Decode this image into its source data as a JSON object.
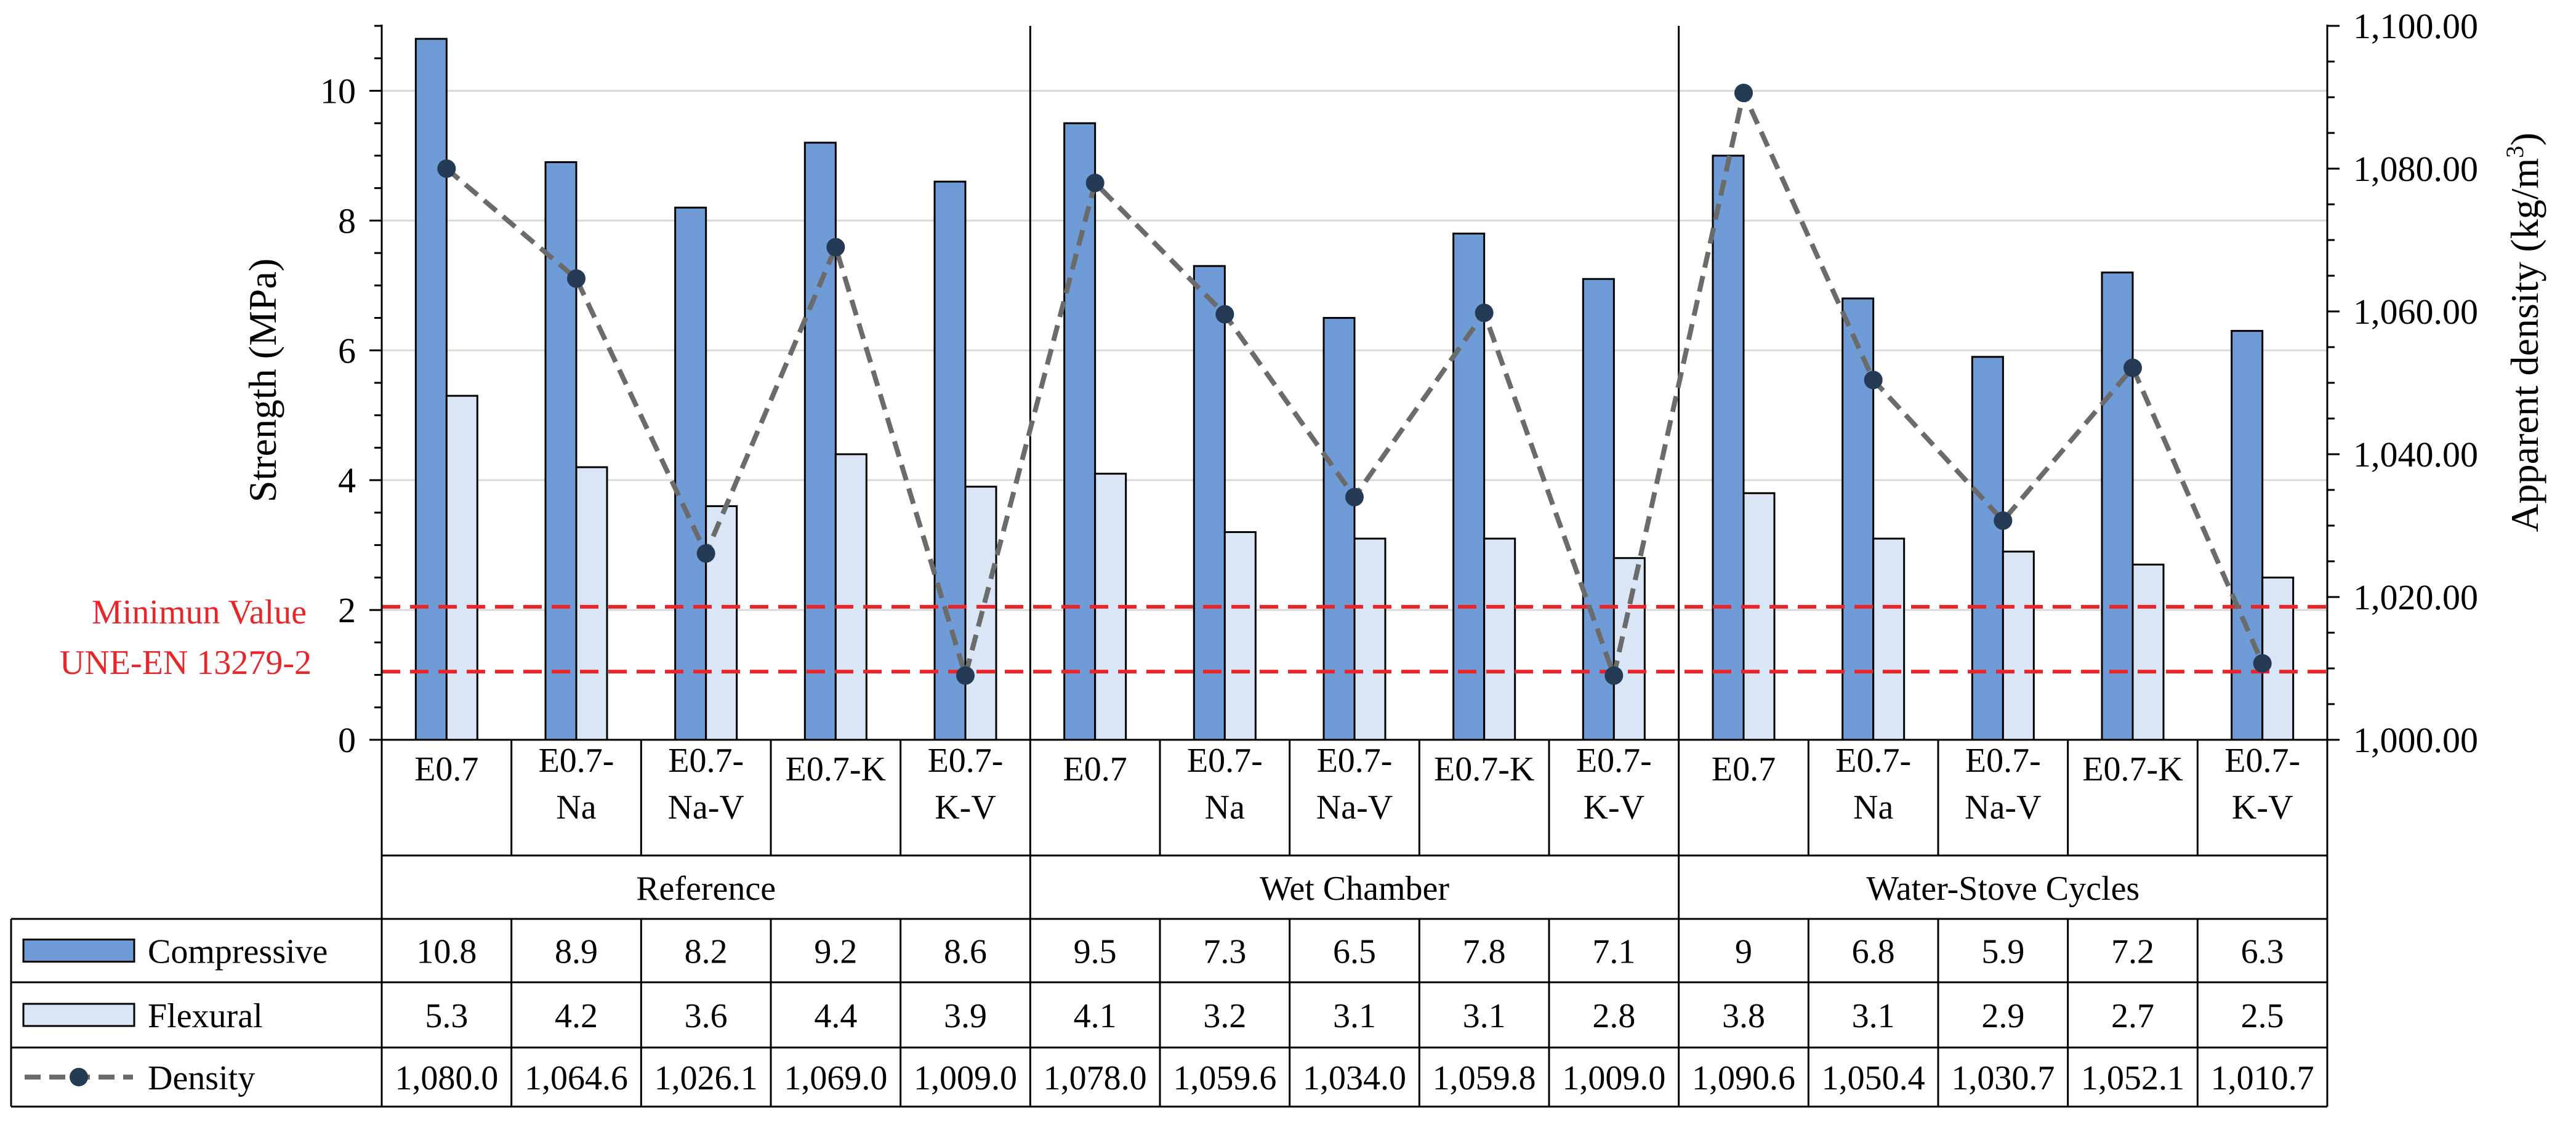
{
  "chart_data": {
    "type": "bar",
    "y_axis_left": {
      "label": "Strength (MPa)",
      "min": 0,
      "max": 11,
      "ticks": [
        "0",
        "2",
        "4",
        "6",
        "8",
        "10"
      ],
      "tick_values": [
        0,
        2,
        4,
        6,
        8,
        10
      ]
    },
    "y_axis_right": {
      "label_main": "Apparent density (kg/m",
      "label_sup": "3",
      "label_end": ")",
      "min": 1000,
      "max": 1100,
      "ticks": [
        "1,000.00",
        "1,020.00",
        "1,040.00",
        "1,060.00",
        "1,080.00",
        "1,100.00"
      ],
      "tick_values": [
        1000,
        1020,
        1040,
        1060,
        1080,
        1100
      ]
    },
    "groups": [
      {
        "name": "Reference",
        "categories": [
          "E0.7",
          "E0.7-\nNa",
          "E0.7-\nNa-V",
          "E0.7-K",
          "E0.7-\nK-V"
        ]
      },
      {
        "name": "Wet Chamber",
        "categories": [
          "E0.7",
          "E0.7-\nNa",
          "E0.7-\nNa-V",
          "E0.7-K",
          "E0.7-\nK-V"
        ]
      },
      {
        "name": "Water-Stove Cycles",
        "categories": [
          "E0.7",
          "E0.7-\nNa",
          "E0.7-\nNa-V",
          "E0.7-K",
          "E0.7-\nK-V"
        ]
      }
    ],
    "series": [
      {
        "name": "Compressive",
        "kind": "bar",
        "axis": "left",
        "color": "#6f9bd6",
        "values": [
          10.8,
          8.9,
          8.2,
          9.2,
          8.6,
          9.5,
          7.3,
          6.5,
          7.8,
          7.1,
          9,
          6.8,
          5.9,
          7.2,
          6.3
        ],
        "labels": [
          "10.8",
          "8.9",
          "8.2",
          "9.2",
          "8.6",
          "9.5",
          "7.3",
          "6.5",
          "7.8",
          "7.1",
          "9",
          "6.8",
          "5.9",
          "7.2",
          "6.3"
        ]
      },
      {
        "name": "Flexural",
        "kind": "bar",
        "axis": "left",
        "color": "#dae6f6",
        "values": [
          5.3,
          4.2,
          3.6,
          4.4,
          3.9,
          4.1,
          3.2,
          3.1,
          3.1,
          2.8,
          3.8,
          3.1,
          2.9,
          2.7,
          2.5
        ],
        "labels": [
          "5.3",
          "4.2",
          "3.6",
          "4.4",
          "3.9",
          "4.1",
          "3.2",
          "3.1",
          "3.1",
          "2.8",
          "3.8",
          "3.1",
          "2.9",
          "2.7",
          "2.5"
        ]
      },
      {
        "name": "Density",
        "kind": "line",
        "axis": "right",
        "color": "#6b6b6b",
        "marker_color": "#243a55",
        "values": [
          1080.0,
          1064.6,
          1026.1,
          1069.0,
          1009.0,
          1078.0,
          1059.6,
          1034.0,
          1059.8,
          1009.0,
          1090.6,
          1050.4,
          1030.7,
          1052.1,
          1010.7
        ],
        "labels": [
          "1,080.0",
          "1,064.6",
          "1,026.1",
          "1,069.0",
          "1,009.0",
          "1,078.0",
          "1,059.6",
          "1,034.0",
          "1,059.8",
          "1,009.0",
          "1,090.6",
          "1,050.4",
          "1,030.7",
          "1,052.1",
          "1,010.7"
        ]
      }
    ],
    "reference_lines": {
      "values": [
        2.05,
        1.05
      ],
      "color": "#e8262a",
      "label_lines": [
        "Minimun Value",
        "UNE-EN 13279-2"
      ]
    },
    "legend_placement": "bottom data table",
    "grid": true
  }
}
